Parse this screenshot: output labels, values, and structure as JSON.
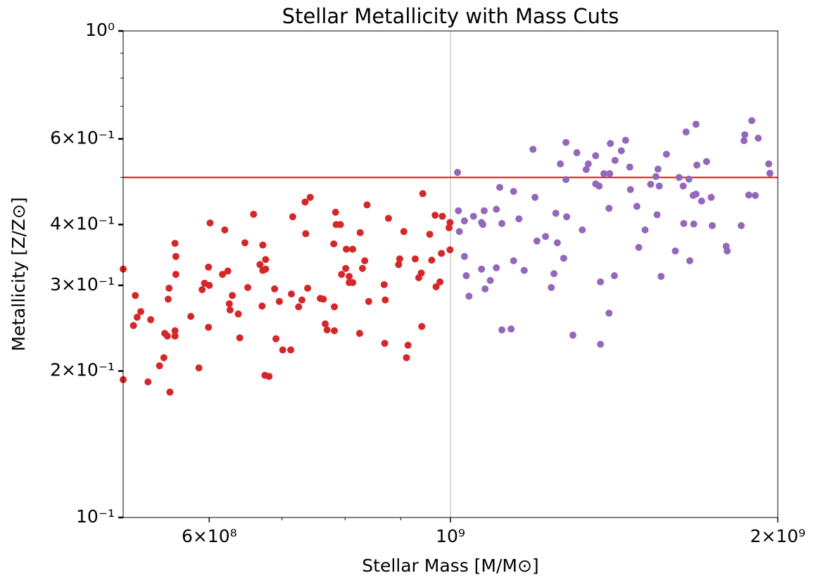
{
  "chart_data": {
    "type": "scatter",
    "title": "Stellar Metallicity with Mass Cuts",
    "xlabel": "Stellar Mass [M/M⊙]",
    "ylabel": "Metallicity [Z/Z⊙]",
    "xscale": "log",
    "yscale": "log",
    "xlim": [
      500000000.0,
      2000000000.0
    ],
    "ylim": [
      0.1,
      1
    ],
    "xticks": [
      {
        "value": 600000000.0,
        "label": "6×10⁸"
      },
      {
        "value": 1000000000.0,
        "label": "10⁹"
      },
      {
        "value": 2000000000.0,
        "label": "2×10⁹"
      }
    ],
    "xminorticks": [
      700000000.0,
      800000000.0,
      900000000.0
    ],
    "yticks": [
      {
        "value": 0.1,
        "label": "10⁻¹"
      },
      {
        "value": 0.2,
        "label": "2×10⁻¹"
      },
      {
        "value": 0.3,
        "label": "3×10⁻¹"
      },
      {
        "value": 0.4,
        "label": "4×10⁻¹"
      },
      {
        "value": 0.6,
        "label": "6×10⁻¹"
      },
      {
        "value": 1,
        "label": "10⁰"
      }
    ],
    "yminorticks": [
      0.5,
      0.7,
      0.8,
      0.9
    ],
    "axvline": {
      "x": 1000000000.0,
      "color": "#b0b0b0"
    },
    "axhline": {
      "y": 0.5,
      "color": "#ff0000"
    },
    "series": [
      {
        "color": "#d62728",
        "x": [
          500000000.0,
          500000000.0,
          513000000.0,
          511000000.0,
          515000000.0,
          519000000.0,
          527000000.0,
          530000000.0,
          540000000.0,
          545000000.0,
          546000000.0,
          549000000.0,
          550000000.0,
          551000000.0,
          552000000.0,
          558000000.0,
          559000000.0,
          559000000.0,
          558000000.0,
          558000000.0,
          577000000.0,
          587000000.0,
          591000000.0,
          594000000.0,
          599000000.0,
          599000000.0,
          601000000.0,
          600000000.0,
          617000000.0,
          620000000.0,
          624000000.0,
          626000000.0,
          627000000.0,
          630000000.0,
          638000000.0,
          640000000.0,
          647000000.0,
          651000000.0,
          659000000.0,
          668000000.0,
          672000000.0,
          671000000.0,
          672000000.0,
          676000000.0,
          676000000.0,
          675000000.0,
          681000000.0,
          689000000.0,
          691000000.0,
          696000000.0,
          701000000.0,
          713000000.0,
          714000000.0,
          716000000.0,
          725000000.0,
          730000000.0,
          735000000.0,
          736000000.0,
          739000000.0,
          743000000.0,
          759000000.0,
          764000000.0,
          767000000.0,
          770000000.0,
          781000000.0,
          782000000.0,
          782000000.0,
          784000000.0,
          785000000.0,
          792000000.0,
          794000000.0,
          801000000.0,
          802000000.0,
          807000000.0,
          807000000.0,
          813000000.0,
          813000000.0,
          825000000.0,
          826000000.0,
          830000000.0,
          834000000.0,
          838000000.0,
          841000000.0,
          869000000.0,
          870000000.0,
          871000000.0,
          877000000.0,
          896000000.0,
          898000000.0,
          906000000.0,
          911000000.0,
          914000000.0,
          928000000.0,
          935000000.0,
          940000000.0,
          941000000.0,
          943000000.0,
          957000000.0,
          961000000.0,
          968000000.0,
          970000000.0,
          978000000.0,
          983000000.0,
          981000000.0,
          997000000.0,
          999000000.0,
          999000000.0
        ],
        "values": [
          0.324,
          0.192,
          0.286,
          0.248,
          0.258,
          0.265,
          0.19,
          0.255,
          0.205,
          0.213,
          0.239,
          0.236,
          0.281,
          0.296,
          0.181,
          0.366,
          0.344,
          0.316,
          0.242,
          0.236,
          0.259,
          0.203,
          0.294,
          0.303,
          0.327,
          0.246,
          0.403,
          0.3,
          0.316,
          0.39,
          0.321,
          0.275,
          0.267,
          0.286,
          0.262,
          0.234,
          0.367,
          0.297,
          0.42,
          0.331,
          0.363,
          0.272,
          0.322,
          0.339,
          0.324,
          0.196,
          0.195,
          0.295,
          0.233,
          0.278,
          0.221,
          0.221,
          0.288,
          0.415,
          0.271,
          0.28,
          0.445,
          0.383,
          0.296,
          0.455,
          0.282,
          0.281,
          0.25,
          0.243,
          0.365,
          0.242,
          0.271,
          0.424,
          0.4,
          0.4,
          0.316,
          0.325,
          0.356,
          0.313,
          0.304,
          0.304,
          0.356,
          0.239,
          0.385,
          0.325,
          0.337,
          0.439,
          0.278,
          0.301,
          0.228,
          0.28,
          0.412,
          0.331,
          0.34,
          0.387,
          0.213,
          0.226,
          0.34,
          0.311,
          0.318,
          0.247,
          0.463,
          0.382,
          0.338,
          0.418,
          0.298,
          0.305,
          0.416,
          0.349,
          0.394,
          0.404,
          0.355
        ]
      },
      {
        "color": "#9467bd",
        "x": [
          1015000000.0,
          1017000000.0,
          1019000000.0,
          1030000000.0,
          1030000000.0,
          1034000000.0,
          1040000000.0,
          1050000000.0,
          1068000000.0,
          1071000000.0,
          1068000000.0,
          1074000000.0,
          1076000000.0,
          1088000000.0,
          1102000000.0,
          1102000000.0,
          1110000000.0,
          1115000000.0,
          1115000000.0,
          1137000000.0,
          1143000000.0,
          1143000000.0,
          1156000000.0,
          1169000000.0,
          1191000000.0,
          1196000000.0,
          1201000000.0,
          1223000000.0,
          1238000000.0,
          1245000000.0,
          1250000000.0,
          1254000000.0,
          1262000000.0,
          1271000000.0,
          1277000000.0,
          1277000000.0,
          1279000000.0,
          1296000000.0,
          1307000000.0,
          1322000000.0,
          1333000000.0,
          1339000000.0,
          1360000000.0,
          1360000000.0,
          1370000000.0,
          1374000000.0,
          1374000000.0,
          1384000000.0,
          1401000000.0,
          1399000000.0,
          1399000000.0,
          1403000000.0,
          1415000000.0,
          1417000000.0,
          1436000000.0,
          1449000000.0,
          1462000000.0,
          1464000000.0,
          1484000000.0,
          1490000000.0,
          1510000000.0,
          1528000000.0,
          1545000000.0,
          1549000000.0,
          1552000000.0,
          1556000000.0,
          1562000000.0,
          1580000000.0,
          1610000000.0,
          1623000000.0,
          1637000000.0,
          1639000000.0,
          1647000000.0,
          1657000000.0,
          1660000000.0,
          1672000000.0,
          1674000000.0,
          1682000000.0,
          1682000000.0,
          1685000000.0,
          1702000000.0,
          1720000000.0,
          1737000000.0,
          1741000000.0,
          1793000000.0,
          1797000000.0,
          1851000000.0,
          1862000000.0,
          1865000000.0,
          1881000000.0,
          1893000000.0,
          1907000000.0,
          1919000000.0,
          1962000000.0,
          1967000000.0
        ],
        "values": [
          0.512,
          0.427,
          0.387,
          0.407,
          0.344,
          0.314,
          0.285,
          0.416,
          0.404,
          0.4,
          0.324,
          0.427,
          0.295,
          0.307,
          0.43,
          0.326,
          0.477,
          0.402,
          0.243,
          0.244,
          0.468,
          0.337,
          0.411,
          0.322,
          0.571,
          0.455,
          0.37,
          0.378,
          0.297,
          0.317,
          0.422,
          0.367,
          0.533,
          0.341,
          0.59,
          0.495,
          0.415,
          0.237,
          0.562,
          0.39,
          0.519,
          0.533,
          0.554,
          0.485,
          0.48,
          0.305,
          0.227,
          0.509,
          0.509,
          0.432,
          0.263,
          0.587,
          0.314,
          0.542,
          0.567,
          0.596,
          0.525,
          0.472,
          0.436,
          0.359,
          0.39,
          0.484,
          0.502,
          0.419,
          0.52,
          0.48,
          0.313,
          0.558,
          0.353,
          0.5,
          0.48,
          0.402,
          0.62,
          0.496,
          0.337,
          0.459,
          0.401,
          0.462,
          0.643,
          0.53,
          0.447,
          0.539,
          0.455,
          0.398,
          0.361,
          0.353,
          0.398,
          0.595,
          0.612,
          0.46,
          0.654,
          0.459,
          0.602,
          0.533,
          0.51
        ]
      }
    ]
  }
}
